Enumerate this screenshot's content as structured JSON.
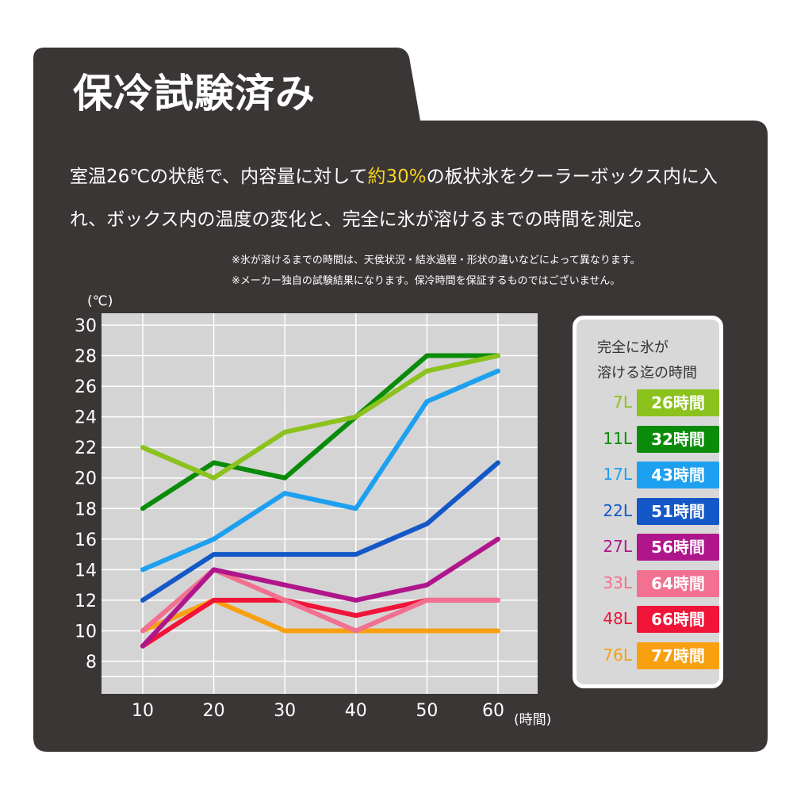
{
  "title": "保冷試験済み",
  "description": {
    "before": "室温26℃の状態で、内容量に対して",
    "highlight": "約30%",
    "after": "の板状氷をクーラーボックス内に入れ、ボックス内の温度の変化と、完全に氷が溶けるまでの時間を測定。"
  },
  "notes": [
    "※氷が溶けるまでの時間は、天侯状況・結氷過程・形状の違いなどによって異なります。",
    "※メーカー独自の試験結果になります。保冷時間を保証するものではございません。"
  ],
  "colors": {
    "background": "#3a3636",
    "plot": "#d4d4d4",
    "highlight": "#f5d21e"
  },
  "legend": {
    "title_line1": "完全に氷が",
    "title_line2": "溶ける迄の時間"
  },
  "chart_data": {
    "type": "line",
    "xlabel": "(時間)",
    "ylabel": "(℃)",
    "x": [
      10,
      20,
      30,
      40,
      50,
      60
    ],
    "xticks": [
      "10",
      "20",
      "30",
      "40",
      "50",
      "60"
    ],
    "yticks": [
      "8",
      "10",
      "12",
      "14",
      "16",
      "18",
      "20",
      "22",
      "24",
      "26",
      "28",
      "30"
    ],
    "ylim": [
      7,
      30.8
    ],
    "grid": true,
    "legend_position": "right",
    "series": [
      {
        "name": "7L",
        "time": "26時間",
        "color": "#8cc21e",
        "values": [
          22,
          20,
          23,
          24,
          27,
          28
        ]
      },
      {
        "name": "11L",
        "time": "32時間",
        "color": "#0a8c0a",
        "values": [
          18,
          21,
          20,
          24,
          28,
          28
        ]
      },
      {
        "name": "17L",
        "time": "43時間",
        "color": "#1ea0f0",
        "values": [
          14,
          16,
          19,
          18,
          25,
          27
        ]
      },
      {
        "name": "22L",
        "time": "51時間",
        "color": "#1458c8",
        "values": [
          12,
          15,
          15,
          15,
          17,
          21
        ]
      },
      {
        "name": "27L",
        "time": "56時間",
        "color": "#b0168c",
        "values": [
          9,
          14,
          13,
          12,
          13,
          16
        ]
      },
      {
        "name": "33L",
        "time": "64時間",
        "color": "#f27090",
        "values": [
          10,
          14,
          12,
          10,
          12,
          12
        ]
      },
      {
        "name": "48L",
        "time": "66時間",
        "color": "#f01438",
        "values": [
          9,
          12,
          12,
          11,
          12,
          12
        ]
      },
      {
        "name": "76L",
        "time": "77時間",
        "color": "#f8a010",
        "values": [
          10,
          12,
          10,
          10,
          10,
          10
        ]
      }
    ]
  }
}
